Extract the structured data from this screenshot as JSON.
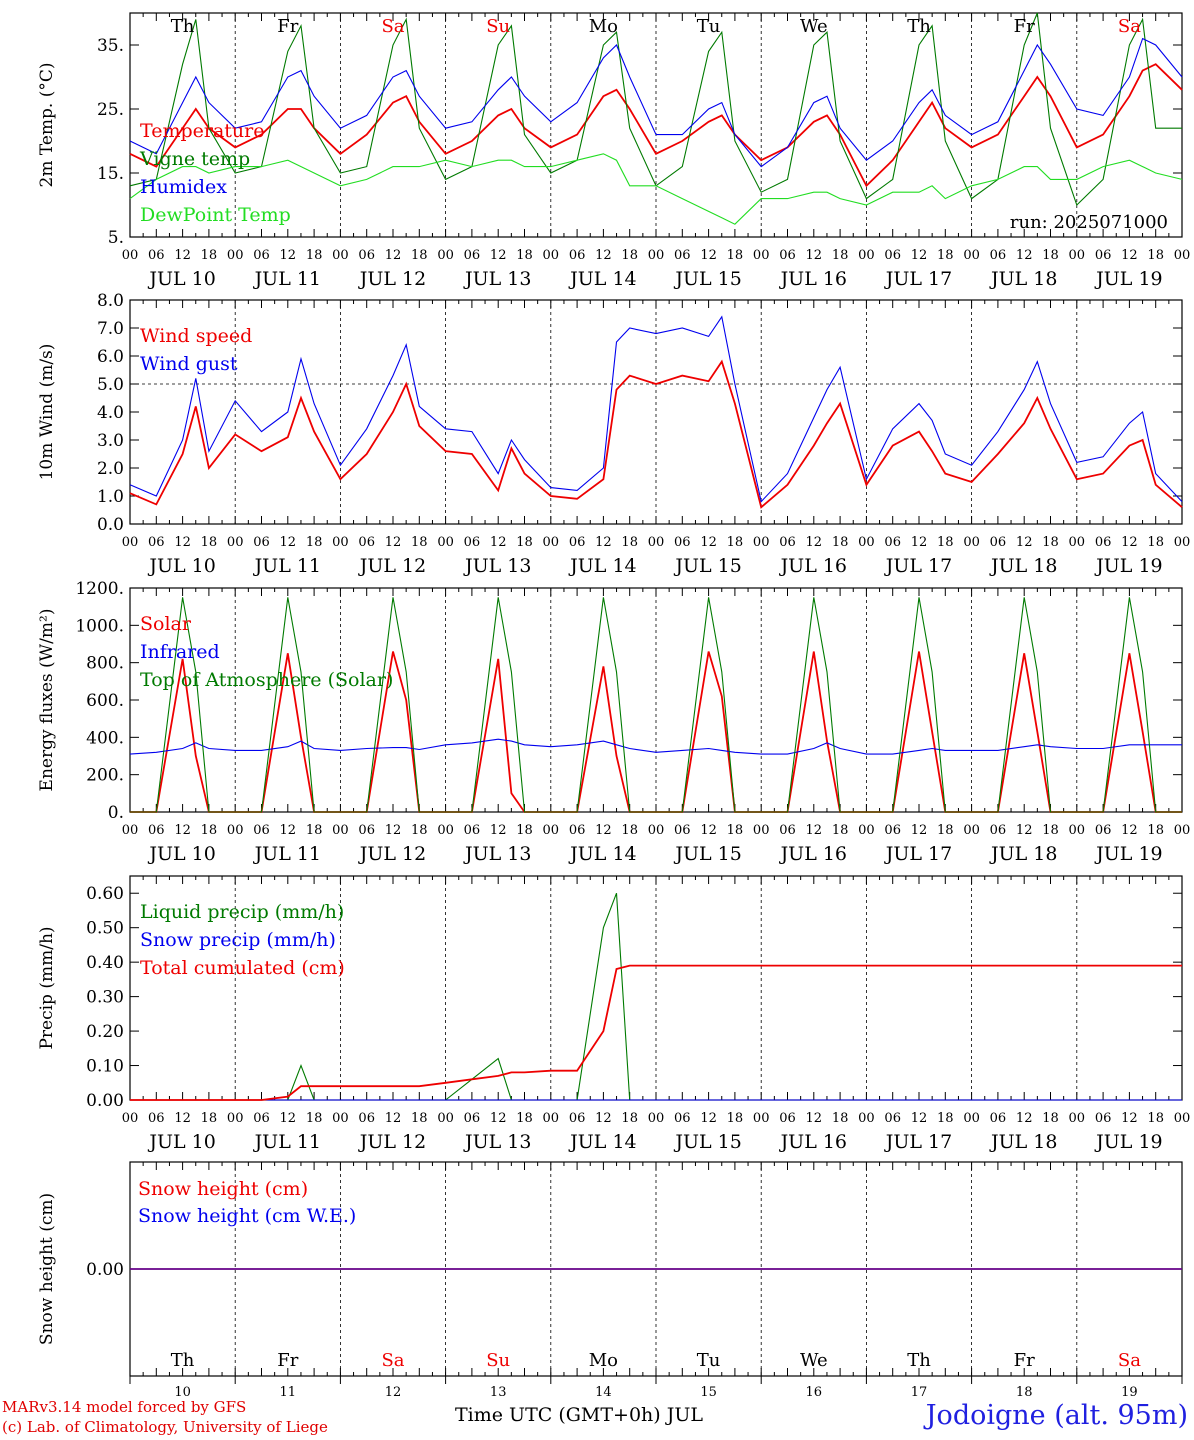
{
  "colors": {
    "red": "#ee0000",
    "blue": "#0000ee",
    "green": "#007a00",
    "lightgreen": "#22dd22",
    "weekend": "#ee0000",
    "axis": "#000000"
  },
  "days": [
    {
      "dow": "Th",
      "date": "JUL 10",
      "num": "10",
      "weekend": false
    },
    {
      "dow": "Fr",
      "date": "JUL 11",
      "num": "11",
      "weekend": false
    },
    {
      "dow": "Sa",
      "date": "JUL 12",
      "num": "12",
      "weekend": true
    },
    {
      "dow": "Su",
      "date": "JUL 13",
      "num": "13",
      "weekend": true
    },
    {
      "dow": "Mo",
      "date": "JUL 14",
      "num": "14",
      "weekend": false
    },
    {
      "dow": "Tu",
      "date": "JUL 15",
      "num": "15",
      "weekend": false
    },
    {
      "dow": "We",
      "date": "JUL 16",
      "num": "16",
      "weekend": false
    },
    {
      "dow": "Th",
      "date": "JUL 17",
      "num": "17",
      "weekend": false
    },
    {
      "dow": "Fr",
      "date": "JUL 18",
      "num": "18",
      "weekend": false
    },
    {
      "dow": "Sa",
      "date": "JUL 19",
      "num": "19",
      "weekend": true
    }
  ],
  "hour_ticks": [
    "00",
    "06",
    "12",
    "18"
  ],
  "footer": {
    "credit_line1": "MARv3.14 model forced by GFS",
    "credit_line2": "(c) Lab. of Climatology, University of Liege",
    "xlabel": "Time UTC (GMT+0h) JUL",
    "location": "Jodoigne (alt. 95m)"
  },
  "chart_data": [
    {
      "type": "line",
      "ylabel": "2m Temp. (°C)",
      "ylim": [
        5,
        40
      ],
      "yticks": [
        5,
        15,
        25,
        35
      ],
      "yticklabels": [
        "5.",
        "15.",
        "25.",
        "35."
      ],
      "run_label": "run: 2025071000",
      "x_unit": "hours since JUL 10 00 UTC",
      "x": [
        0,
        6,
        12,
        15,
        18,
        24,
        30,
        36,
        39,
        42,
        48,
        54,
        60,
        63,
        66,
        72,
        78,
        84,
        87,
        90,
        96,
        102,
        108,
        111,
        114,
        120,
        126,
        132,
        135,
        138,
        144,
        150,
        156,
        159,
        162,
        168,
        174,
        180,
        183,
        186,
        192,
        198,
        204,
        207,
        210,
        216,
        222,
        228,
        231,
        234,
        240
      ],
      "series": [
        {
          "name": "Temperature",
          "color": "red",
          "values": [
            18,
            16,
            22,
            25,
            22,
            19,
            21,
            25,
            25,
            22,
            18,
            21,
            26,
            27,
            23,
            18,
            20,
            24,
            25,
            22,
            19,
            21,
            27,
            28,
            25,
            18,
            20,
            23,
            24,
            21,
            17,
            19,
            23,
            24,
            21,
            13,
            17,
            23,
            26,
            22,
            19,
            21,
            27,
            30,
            27,
            19,
            21,
            27,
            31,
            32,
            28
          ]
        },
        {
          "name": "Vigne temp",
          "color": "green",
          "values": [
            13,
            14,
            32,
            39,
            22,
            15,
            16,
            34,
            38,
            22,
            15,
            16,
            35,
            39,
            22,
            14,
            16,
            35,
            38,
            21,
            15,
            17,
            35,
            37,
            22,
            13,
            16,
            34,
            37,
            20,
            12,
            14,
            35,
            37,
            20,
            11,
            14,
            35,
            38,
            20,
            11,
            14,
            35,
            40,
            22,
            10,
            14,
            35,
            39,
            22,
            22
          ]
        },
        {
          "name": "Humidex",
          "color": "blue",
          "values": [
            20,
            18,
            26,
            30,
            26,
            22,
            23,
            30,
            31,
            27,
            22,
            24,
            30,
            31,
            27,
            22,
            23,
            28,
            30,
            27,
            23,
            26,
            33,
            35,
            30,
            21,
            21,
            25,
            26,
            21,
            16,
            19,
            26,
            27,
            22,
            17,
            20,
            26,
            28,
            24,
            21,
            23,
            31,
            35,
            32,
            25,
            24,
            30,
            36,
            35,
            30
          ]
        },
        {
          "name": "DewPoint Temp",
          "color": "lightgreen",
          "values": [
            11,
            14,
            16,
            16,
            15,
            16,
            16,
            17,
            16,
            15,
            13,
            14,
            16,
            16,
            16,
            17,
            16,
            17,
            17,
            16,
            16,
            17,
            18,
            17,
            13,
            13,
            11,
            9,
            8,
            7,
            11,
            11,
            12,
            12,
            11,
            10,
            12,
            12,
            13,
            11,
            13,
            14,
            16,
            16,
            14,
            14,
            16,
            17,
            16,
            15,
            14
          ]
        }
      ]
    },
    {
      "type": "line",
      "ylabel": "10m Wind (m/s)",
      "ylim": [
        0,
        8
      ],
      "yticks": [
        0,
        1,
        2,
        3,
        4,
        5,
        6,
        7,
        8
      ],
      "yticklabels": [
        "0.0",
        "1.0",
        "2.0",
        "3.0",
        "4.0",
        "5.0",
        "6.0",
        "7.0",
        "8.0"
      ],
      "reference_line": 5,
      "x_unit": "hours since JUL 10 00 UTC",
      "x": [
        0,
        6,
        12,
        15,
        18,
        24,
        30,
        36,
        39,
        42,
        48,
        54,
        60,
        63,
        66,
        72,
        78,
        84,
        87,
        90,
        96,
        102,
        108,
        111,
        114,
        120,
        126,
        132,
        135,
        138,
        144,
        150,
        156,
        159,
        162,
        168,
        174,
        180,
        183,
        186,
        192,
        198,
        204,
        207,
        210,
        216,
        222,
        228,
        231,
        234,
        240
      ],
      "series": [
        {
          "name": "Wind speed",
          "color": "red",
          "values": [
            1.1,
            0.7,
            2.5,
            4.2,
            2.0,
            3.2,
            2.6,
            3.1,
            4.5,
            3.3,
            1.6,
            2.5,
            4.0,
            5.0,
            3.5,
            2.6,
            2.5,
            1.2,
            2.7,
            1.8,
            1.0,
            0.9,
            1.6,
            4.8,
            5.3,
            5.0,
            5.3,
            5.1,
            5.8,
            4.3,
            0.6,
            1.4,
            2.8,
            3.6,
            4.3,
            1.4,
            2.8,
            3.3,
            2.6,
            1.8,
            1.5,
            2.5,
            3.6,
            4.5,
            3.4,
            1.6,
            1.8,
            2.8,
            3.0,
            1.4,
            0.6
          ]
        },
        {
          "name": "Wind gust",
          "color": "blue",
          "values": [
            1.4,
            1.0,
            3.0,
            5.2,
            2.6,
            4.4,
            3.3,
            4.0,
            5.9,
            4.3,
            2.1,
            3.4,
            5.3,
            6.4,
            4.2,
            3.4,
            3.3,
            1.8,
            3.0,
            2.3,
            1.3,
            1.2,
            2.0,
            6.5,
            7.0,
            6.8,
            7.0,
            6.7,
            7.4,
            5.0,
            0.8,
            1.8,
            3.8,
            4.8,
            5.6,
            1.6,
            3.4,
            4.3,
            3.7,
            2.5,
            2.1,
            3.3,
            4.8,
            5.8,
            4.3,
            2.2,
            2.4,
            3.6,
            4.0,
            1.8,
            0.8
          ]
        }
      ]
    },
    {
      "type": "line",
      "ylabel": "Energy fluxes (W/m²)",
      "ylim": [
        0,
        1200
      ],
      "yticks": [
        0,
        200,
        400,
        600,
        800,
        1000,
        1200
      ],
      "yticklabels": [
        "0.",
        "200.",
        "400.",
        "600.",
        "800.",
        "1000.",
        "1200."
      ],
      "x_unit": "hours since JUL 10 00 UTC",
      "x": [
        0,
        6,
        12,
        15,
        18,
        24,
        30,
        36,
        39,
        42,
        48,
        54,
        60,
        63,
        66,
        72,
        78,
        84,
        87,
        90,
        96,
        102,
        108,
        111,
        114,
        120,
        126,
        132,
        135,
        138,
        144,
        150,
        156,
        159,
        162,
        168,
        174,
        180,
        183,
        186,
        192,
        198,
        204,
        207,
        210,
        216,
        222,
        228,
        231,
        234,
        240
      ],
      "series": [
        {
          "name": "Solar",
          "color": "red",
          "values": [
            0,
            0,
            820,
            300,
            0,
            0,
            0,
            850,
            400,
            0,
            0,
            0,
            860,
            600,
            0,
            0,
            0,
            820,
            100,
            0,
            0,
            0,
            780,
            300,
            0,
            0,
            0,
            860,
            620,
            0,
            0,
            0,
            860,
            380,
            0,
            0,
            0,
            860,
            430,
            0,
            0,
            0,
            850,
            430,
            0,
            0,
            0,
            850,
            430,
            0,
            0
          ]
        },
        {
          "name": "Infrared",
          "color": "blue",
          "values": [
            310,
            320,
            340,
            370,
            340,
            330,
            330,
            350,
            380,
            340,
            330,
            340,
            345,
            345,
            335,
            360,
            370,
            390,
            380,
            360,
            350,
            360,
            380,
            360,
            340,
            320,
            330,
            340,
            330,
            320,
            310,
            310,
            340,
            370,
            340,
            310,
            310,
            330,
            340,
            330,
            330,
            330,
            350,
            360,
            350,
            340,
            340,
            360,
            360,
            360,
            360
          ]
        },
        {
          "name": "Top of Atmosphere (Solar)",
          "color": "green",
          "values": [
            0,
            0,
            1150,
            750,
            0,
            0,
            0,
            1150,
            750,
            0,
            0,
            0,
            1150,
            750,
            0,
            0,
            0,
            1150,
            750,
            0,
            0,
            0,
            1150,
            750,
            0,
            0,
            0,
            1150,
            750,
            0,
            0,
            0,
            1150,
            750,
            0,
            0,
            0,
            1150,
            750,
            0,
            0,
            0,
            1150,
            750,
            0,
            0,
            0,
            1150,
            750,
            0,
            0
          ]
        }
      ]
    },
    {
      "type": "line",
      "ylabel": "Precip (mm/h)",
      "ylim": [
        0,
        0.65
      ],
      "yticks": [
        0,
        0.1,
        0.2,
        0.3,
        0.4,
        0.5,
        0.6
      ],
      "yticklabels": [
        "0.00",
        "0.10",
        "0.20",
        "0.30",
        "0.40",
        "0.50",
        "0.60"
      ],
      "x_unit": "hours since JUL 10 00 UTC",
      "x": [
        0,
        6,
        12,
        15,
        18,
        24,
        30,
        36,
        39,
        42,
        48,
        54,
        60,
        63,
        66,
        72,
        78,
        84,
        87,
        90,
        96,
        102,
        108,
        111,
        114,
        120,
        126,
        132,
        135,
        138,
        144,
        150,
        156,
        159,
        162,
        168,
        174,
        180,
        183,
        186,
        192,
        198,
        204,
        207,
        210,
        216,
        222,
        228,
        231,
        234,
        240
      ],
      "series": [
        {
          "name": "Liquid precip (mm/h)",
          "color": "green",
          "values": [
            0,
            0,
            0,
            0,
            0,
            0,
            0,
            0,
            0.1,
            0,
            0,
            0,
            0,
            0,
            0,
            0,
            0.06,
            0.12,
            0,
            0,
            0,
            0,
            0.5,
            0.6,
            0,
            0,
            0,
            0,
            0,
            0,
            0,
            0,
            0,
            0,
            0,
            0,
            0,
            0,
            0,
            0,
            0,
            0,
            0,
            0,
            0,
            0,
            0,
            0,
            0,
            0,
            0
          ]
        },
        {
          "name": "Snow precip (mm/h)",
          "color": "blue",
          "values": [
            0,
            0,
            0,
            0,
            0,
            0,
            0,
            0,
            0,
            0,
            0,
            0,
            0,
            0,
            0,
            0,
            0,
            0,
            0,
            0,
            0,
            0,
            0,
            0,
            0,
            0,
            0,
            0,
            0,
            0,
            0,
            0,
            0,
            0,
            0,
            0,
            0,
            0,
            0,
            0,
            0,
            0,
            0,
            0,
            0,
            0,
            0,
            0,
            0,
            0,
            0
          ]
        },
        {
          "name": "Total cumulated (cm)",
          "color": "red",
          "values": [
            0,
            0,
            0,
            0,
            0,
            0,
            0,
            0.01,
            0.04,
            0.04,
            0.04,
            0.04,
            0.04,
            0.04,
            0.04,
            0.05,
            0.06,
            0.07,
            0.08,
            0.08,
            0.085,
            0.085,
            0.2,
            0.38,
            0.39,
            0.39,
            0.39,
            0.39,
            0.39,
            0.39,
            0.39,
            0.39,
            0.39,
            0.39,
            0.39,
            0.39,
            0.39,
            0.39,
            0.39,
            0.39,
            0.39,
            0.39,
            0.39,
            0.39,
            0.39,
            0.39,
            0.39,
            0.39,
            0.39,
            0.39,
            0.39
          ]
        }
      ]
    },
    {
      "type": "line",
      "ylabel": "Snow height (cm)",
      "ylim": [
        -1,
        1
      ],
      "yticks": [
        0
      ],
      "yticklabels": [
        "0.00"
      ],
      "x_unit": "hours since JUL 10 00 UTC",
      "x": [
        0,
        240
      ],
      "series": [
        {
          "name": "Snow height (cm)",
          "color": "red",
          "values": [
            0,
            0
          ]
        },
        {
          "name": "Snow height (cm W.E.)",
          "color": "blue",
          "values": [
            0,
            0
          ]
        }
      ]
    }
  ]
}
